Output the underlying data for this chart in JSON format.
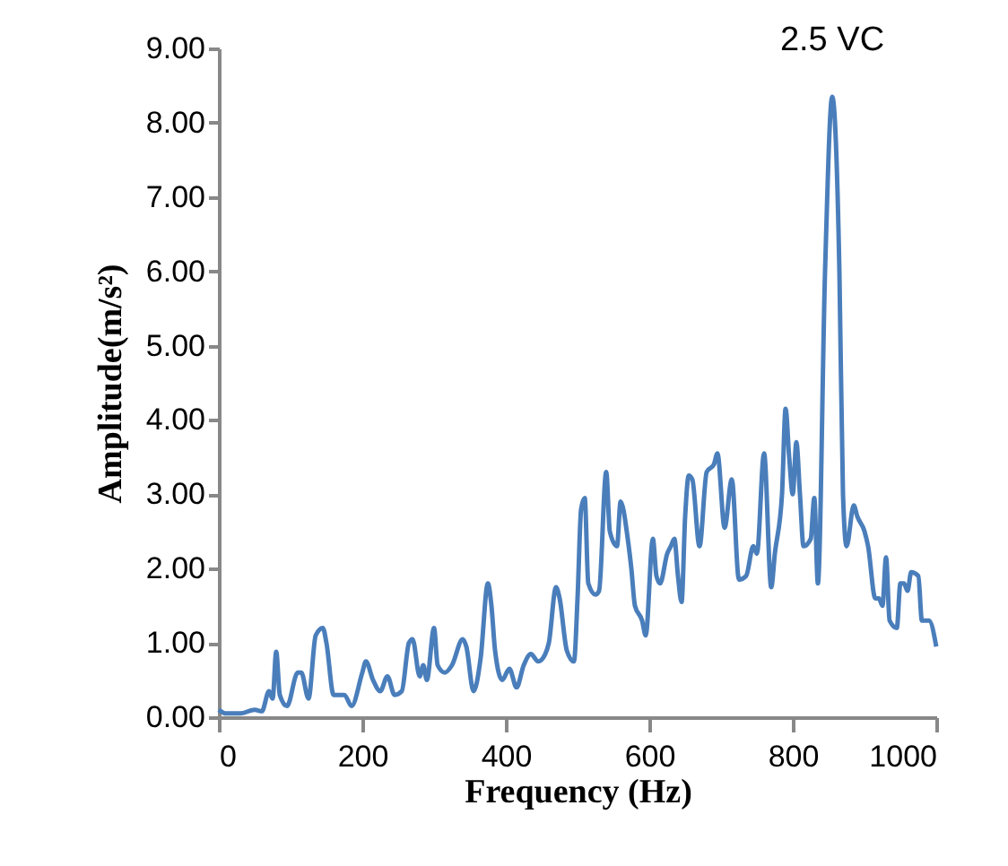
{
  "chart_data": {
    "type": "line",
    "xlabel": "Frequency (Hz)",
    "ylabel": "Amplitude(m/s²)",
    "annotations": [
      {
        "text": "2.5 VC",
        "x": 855,
        "y": 8.35
      }
    ],
    "xlim": [
      0,
      1000
    ],
    "xticks": [
      0,
      200,
      400,
      600,
      800,
      1000
    ],
    "ylim": [
      0,
      9
    ],
    "yticks": [
      {
        "value": 0,
        "label": "0.00"
      },
      {
        "value": 1,
        "label": "1.00"
      },
      {
        "value": 2,
        "label": "2.00"
      },
      {
        "value": 3,
        "label": "3.00"
      },
      {
        "value": 4,
        "label": "4.00"
      },
      {
        "value": 5,
        "label": "5.00"
      },
      {
        "value": 6,
        "label": "6.00"
      },
      {
        "value": 7,
        "label": "7.00"
      },
      {
        "value": 8,
        "label": "8.00"
      },
      {
        "value": 9,
        "label": "9.00"
      }
    ],
    "grid": false,
    "legend": false,
    "x": [
      0,
      10,
      30,
      50,
      60,
      70,
      75,
      80,
      85,
      95,
      110,
      115,
      125,
      135,
      145,
      150,
      160,
      175,
      185,
      200,
      205,
      215,
      225,
      235,
      245,
      255,
      265,
      270,
      280,
      285,
      290,
      300,
      305,
      315,
      325,
      340,
      345,
      355,
      365,
      375,
      380,
      385,
      395,
      405,
      415,
      425,
      435,
      445,
      455,
      460,
      470,
      475,
      485,
      495,
      500,
      505,
      510,
      515,
      525,
      530,
      540,
      545,
      555,
      560,
      570,
      575,
      580,
      590,
      595,
      605,
      610,
      615,
      625,
      630,
      635,
      640,
      645,
      650,
      655,
      660,
      670,
      680,
      690,
      695,
      705,
      715,
      725,
      735,
      745,
      750,
      760,
      770,
      775,
      785,
      790,
      795,
      800,
      805,
      810,
      815,
      825,
      830,
      835,
      845,
      855,
      865,
      870,
      875,
      885,
      890,
      900,
      905,
      915,
      920,
      925,
      930,
      935,
      945,
      950,
      955,
      960,
      965,
      975,
      980,
      990,
      1000
    ],
    "series": [
      {
        "color": "#4a7ebb",
        "values": [
          0.1,
          0.05,
          0.05,
          0.1,
          0.08,
          0.35,
          0.25,
          0.88,
          0.3,
          0.15,
          0.6,
          0.6,
          0.25,
          1.1,
          1.2,
          1.0,
          0.3,
          0.3,
          0.15,
          0.6,
          0.75,
          0.5,
          0.35,
          0.55,
          0.3,
          0.35,
          1.0,
          1.05,
          0.55,
          0.7,
          0.5,
          1.2,
          0.7,
          0.6,
          0.7,
          1.05,
          0.95,
          0.35,
          0.8,
          1.8,
          1.5,
          0.9,
          0.5,
          0.65,
          0.4,
          0.7,
          0.85,
          0.75,
          0.85,
          1.0,
          1.75,
          1.6,
          0.9,
          0.75,
          1.6,
          2.8,
          2.95,
          1.8,
          1.65,
          1.7,
          3.3,
          2.5,
          2.3,
          2.9,
          2.4,
          2.0,
          1.5,
          1.3,
          1.1,
          2.4,
          1.9,
          1.8,
          2.2,
          2.3,
          2.4,
          1.9,
          1.55,
          2.7,
          3.25,
          3.2,
          2.3,
          3.3,
          3.4,
          3.55,
          2.55,
          3.2,
          1.85,
          1.9,
          2.3,
          2.2,
          3.55,
          1.75,
          2.2,
          3.0,
          4.15,
          3.5,
          3.0,
          3.7,
          3.0,
          2.3,
          2.4,
          2.95,
          1.8,
          6.0,
          8.35,
          6.0,
          3.0,
          2.3,
          2.85,
          2.7,
          2.5,
          2.3,
          1.6,
          1.6,
          1.5,
          2.15,
          1.3,
          1.2,
          1.8,
          1.8,
          1.7,
          1.95,
          1.9,
          1.3,
          1.3,
          0.95
        ]
      }
    ]
  }
}
